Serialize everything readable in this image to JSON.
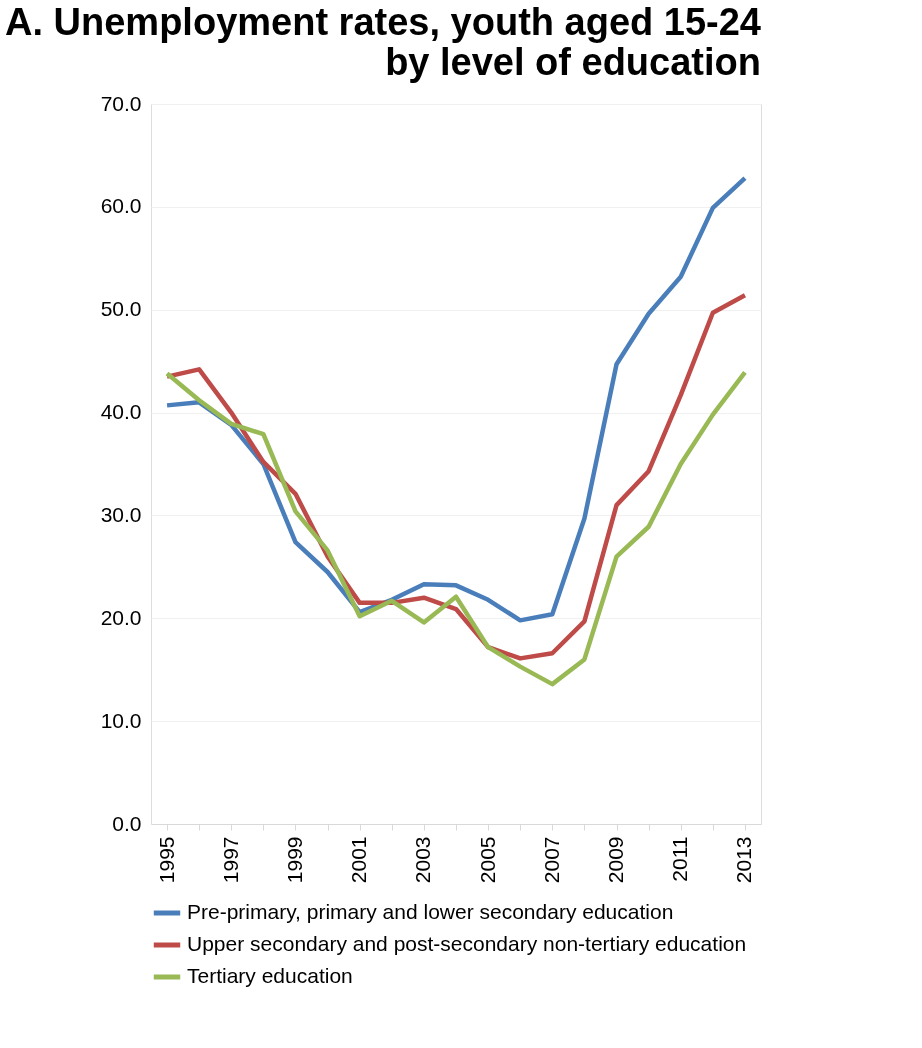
{
  "chart_data": {
    "type": "line",
    "title": [
      "A. Unemployment rates, youth aged 15-24",
      "by level of education"
    ],
    "categories": [
      "1995",
      null,
      "1997",
      null,
      "1999",
      null,
      "2001",
      null,
      "2003",
      null,
      "2005",
      null,
      "2007",
      null,
      "2009",
      null,
      "2011",
      null,
      "2013"
    ],
    "series": [
      {
        "name": "Pre-primary, primary and lower secondary education",
        "color": "#4a7ebb",
        "values": [
          40.7,
          41.0,
          38.8,
          35.0,
          27.4,
          24.5,
          20.6,
          21.8,
          23.3,
          23.2,
          21.8,
          19.8,
          20.4,
          29.7,
          44.7,
          49.6,
          53.2,
          59.9,
          62.8
        ]
      },
      {
        "name": "Upper secondary and post-secondary non-tertiary education",
        "color": "#be4b48",
        "values": [
          43.5,
          44.2,
          40.0,
          35.2,
          32.1,
          26.0,
          21.5,
          21.5,
          22.0,
          20.9,
          17.2,
          16.1,
          16.6,
          19.7,
          31.0,
          34.3,
          41.7,
          49.7,
          51.4
        ]
      },
      {
        "name": "Tertiary education",
        "color": "#98b954",
        "values": [
          43.8,
          41.2,
          38.9,
          37.9,
          30.4,
          26.6,
          20.2,
          21.7,
          19.6,
          22.1,
          17.2,
          15.3,
          13.6,
          16.0,
          26.0,
          28.9,
          35.0,
          39.8,
          43.9
        ]
      }
    ],
    "ylim": [
      0,
      70
    ],
    "yticks": [
      {
        "value": 0,
        "label": "0.0"
      },
      {
        "value": 10,
        "label": "10.0"
      },
      {
        "value": 20,
        "label": "20.0"
      },
      {
        "value": 30,
        "label": "30.0"
      },
      {
        "value": 40,
        "label": "40.0"
      },
      {
        "value": 50,
        "label": "50.0"
      },
      {
        "value": 60,
        "label": "60.0"
      },
      {
        "value": 70,
        "label": "70.0"
      }
    ],
    "grid": "y",
    "legend": "bottom",
    "marker": "none",
    "line_style": "solid"
  }
}
